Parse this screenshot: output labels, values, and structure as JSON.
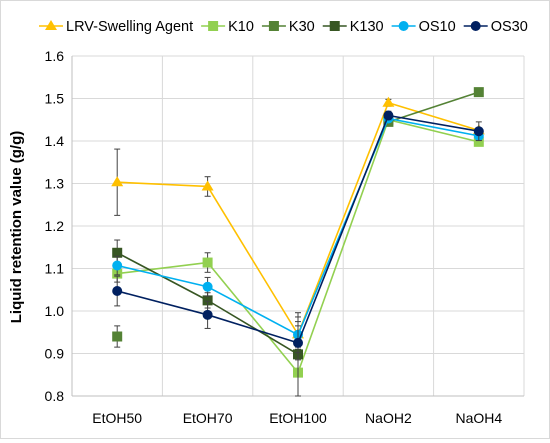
{
  "chart_data": {
    "type": "line",
    "title": "",
    "xlabel": "",
    "ylabel": "Liquid retention value (g/g)",
    "categories": [
      "EtOH50",
      "EtOH70",
      "EtOH100",
      "NaOH2",
      "NaOH4"
    ],
    "ylim": [
      0.8,
      1.6
    ],
    "yticks": [
      "0.8",
      "0.9",
      "1.0",
      "1.1",
      "1.2",
      "1.3",
      "1.4",
      "1.5",
      "1.6"
    ],
    "grid": "vertical-and-horizontal",
    "legend_position": "top",
    "series": [
      {
        "name": "LRV-Swelling Agent",
        "color": "#ffc000",
        "marker": "triangle",
        "values": [
          1.303,
          1.293,
          0.945,
          1.49,
          1.425
        ],
        "err": [
          0.078,
          0.023,
          0.03,
          0.008,
          0.006
        ]
      },
      {
        "name": "K10",
        "color": "#92d050",
        "marker": "square",
        "values": [
          1.088,
          1.114,
          0.855,
          1.45,
          1.398
        ],
        "err": [
          0.02,
          0.023,
          0.055,
          0.006,
          0.008
        ]
      },
      {
        "name": "K30",
        "color": "#548235",
        "marker": "square",
        "values": [
          0.94,
          null,
          null,
          1.445,
          1.515
        ],
        "err": [
          0.025,
          null,
          null,
          0.008,
          0.006
        ]
      },
      {
        "name": "K130",
        "color": "#375623",
        "marker": "square",
        "values": [
          1.137,
          1.025,
          0.898,
          null,
          null
        ],
        "err": [
          0.03,
          0.018,
          0.098,
          null,
          null
        ]
      },
      {
        "name": "OS10",
        "color": "#00b0f0",
        "marker": "circle",
        "values": [
          1.107,
          1.057,
          0.944,
          1.453,
          1.412
        ],
        "err": [
          0.022,
          0.022,
          0.042,
          0.008,
          0.01
        ]
      },
      {
        "name": "OS30",
        "color": "#002060",
        "marker": "circle",
        "values": [
          1.047,
          0.991,
          0.925,
          1.46,
          1.423
        ],
        "err": [
          0.035,
          0.032,
          0.04,
          0.01,
          0.022
        ]
      }
    ]
  }
}
